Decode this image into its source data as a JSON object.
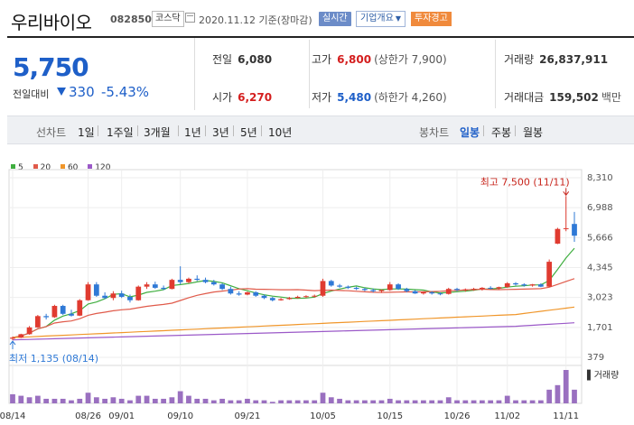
{
  "header": {
    "stock_name": "우리바이오",
    "stock_code": "082850",
    "market": "코스닥",
    "date_text": "2020.11.12 기준(장마감)",
    "realtime_label": "실시간",
    "company_info_label": "기업개요",
    "warning_label": "투자경고"
  },
  "price": {
    "current": "5,750",
    "change_label": "전일대비",
    "change_value": "330",
    "change_pct": "-5.43%"
  },
  "stats": {
    "prev_close_label": "전일",
    "prev_close": "6,080",
    "high_label": "고가",
    "high": "6,800",
    "upper_limit": "(상한가 7,900)",
    "volume_label": "거래량",
    "volume": "26,837,911",
    "open_label": "시가",
    "open": "6,270",
    "low_label": "저가",
    "low": "5,480",
    "lower_limit": "(하한가 4,260)",
    "amount_label": "거래대금",
    "amount": "159,502",
    "amount_unit": "백만"
  },
  "period_bar": {
    "line_chart_label": "선차트",
    "line_periods": [
      "1일",
      "1주일",
      "3개월",
      "1년",
      "3년",
      "5년",
      "10년"
    ],
    "candle_chart_label": "봉차트",
    "candle_periods": [
      "일봉",
      "주봉",
      "월봉"
    ],
    "active_candle": "일봉"
  },
  "chart_data": {
    "type": "candlestick",
    "legend": [
      {
        "name": "5",
        "color": "#3fae3f"
      },
      {
        "name": "20",
        "color": "#e05a4a"
      },
      {
        "name": "60",
        "color": "#f0962a"
      },
      {
        "name": "120",
        "color": "#9b59c8"
      }
    ],
    "y_ticks": [
      8310,
      6988,
      5666,
      4345,
      3023,
      1701,
      379
    ],
    "ylim": [
      379,
      8310
    ],
    "x_ticks": [
      "08/14",
      "08/26",
      "09/01",
      "09/10",
      "09/21",
      "10/05",
      "10/15",
      "10/26",
      "11/02",
      "11/11"
    ],
    "x_tick_index": [
      0,
      9,
      13,
      20,
      28,
      37,
      45,
      53,
      59,
      66
    ],
    "max_label": "최고 7,500 (11/11)",
    "min_label": "최저 1,135 (08/14)",
    "volume_label": "거래량",
    "candles": [
      {
        "o": 1200,
        "h": 1300,
        "l": 1135,
        "c": 1250
      },
      {
        "o": 1250,
        "h": 1420,
        "l": 1230,
        "c": 1400
      },
      {
        "o": 1400,
        "h": 1760,
        "l": 1380,
        "c": 1700
      },
      {
        "o": 1700,
        "h": 2250,
        "l": 1680,
        "c": 2200
      },
      {
        "o": 2200,
        "h": 2300,
        "l": 2050,
        "c": 2150
      },
      {
        "o": 2150,
        "h": 2700,
        "l": 2120,
        "c": 2650
      },
      {
        "o": 2650,
        "h": 2700,
        "l": 2250,
        "c": 2300
      },
      {
        "o": 2300,
        "h": 2480,
        "l": 2180,
        "c": 2220
      },
      {
        "o": 2220,
        "h": 2950,
        "l": 2200,
        "c": 2900
      },
      {
        "o": 2900,
        "h": 3700,
        "l": 2880,
        "c": 3600
      },
      {
        "o": 3600,
        "h": 3700,
        "l": 3050,
        "c": 3100
      },
      {
        "o": 3100,
        "h": 3250,
        "l": 2950,
        "c": 3000
      },
      {
        "o": 3000,
        "h": 3300,
        "l": 2900,
        "c": 3200
      },
      {
        "o": 3200,
        "h": 3320,
        "l": 3000,
        "c": 3050
      },
      {
        "o": 3050,
        "h": 3150,
        "l": 2800,
        "c": 2900
      },
      {
        "o": 2900,
        "h": 3550,
        "l": 2880,
        "c": 3500
      },
      {
        "o": 3500,
        "h": 3700,
        "l": 3400,
        "c": 3600
      },
      {
        "o": 3600,
        "h": 3720,
        "l": 3400,
        "c": 3450
      },
      {
        "o": 3450,
        "h": 3550,
        "l": 3350,
        "c": 3400
      },
      {
        "o": 3400,
        "h": 3850,
        "l": 3380,
        "c": 3800
      },
      {
        "o": 3800,
        "h": 4400,
        "l": 3600,
        "c": 3700
      },
      {
        "o": 3700,
        "h": 3900,
        "l": 3650,
        "c": 3850
      },
      {
        "o": 3850,
        "h": 4000,
        "l": 3750,
        "c": 3800
      },
      {
        "o": 3800,
        "h": 3900,
        "l": 3650,
        "c": 3700
      },
      {
        "o": 3700,
        "h": 3800,
        "l": 3550,
        "c": 3600
      },
      {
        "o": 3600,
        "h": 3650,
        "l": 3350,
        "c": 3400
      },
      {
        "o": 3400,
        "h": 3500,
        "l": 3150,
        "c": 3200
      },
      {
        "o": 3200,
        "h": 3300,
        "l": 3100,
        "c": 3150
      },
      {
        "o": 3150,
        "h": 3280,
        "l": 3120,
        "c": 3250
      },
      {
        "o": 3250,
        "h": 3300,
        "l": 3050,
        "c": 3100
      },
      {
        "o": 3100,
        "h": 3150,
        "l": 2950,
        "c": 3000
      },
      {
        "o": 3000,
        "h": 3050,
        "l": 2850,
        "c": 2900
      },
      {
        "o": 2900,
        "h": 3000,
        "l": 2880,
        "c": 2950
      },
      {
        "o": 2950,
        "h": 3050,
        "l": 2920,
        "c": 3000
      },
      {
        "o": 3000,
        "h": 3100,
        "l": 2980,
        "c": 3050
      },
      {
        "o": 3050,
        "h": 3120,
        "l": 3000,
        "c": 3080
      },
      {
        "o": 3080,
        "h": 3150,
        "l": 3020,
        "c": 3100
      },
      {
        "o": 3100,
        "h": 3850,
        "l": 3050,
        "c": 3750
      },
      {
        "o": 3750,
        "h": 3800,
        "l": 3500,
        "c": 3550
      },
      {
        "o": 3550,
        "h": 3620,
        "l": 3450,
        "c": 3500
      },
      {
        "o": 3500,
        "h": 3550,
        "l": 3400,
        "c": 3450
      },
      {
        "o": 3450,
        "h": 3500,
        "l": 3350,
        "c": 3400
      },
      {
        "o": 3400,
        "h": 3450,
        "l": 3300,
        "c": 3350
      },
      {
        "o": 3350,
        "h": 3420,
        "l": 3250,
        "c": 3300
      },
      {
        "o": 3300,
        "h": 3380,
        "l": 3230,
        "c": 3350
      },
      {
        "o": 3350,
        "h": 3700,
        "l": 3320,
        "c": 3600
      },
      {
        "o": 3600,
        "h": 3650,
        "l": 3350,
        "c": 3400
      },
      {
        "o": 3400,
        "h": 3450,
        "l": 3250,
        "c": 3300
      },
      {
        "o": 3300,
        "h": 3350,
        "l": 3180,
        "c": 3200
      },
      {
        "o": 3200,
        "h": 3280,
        "l": 3150,
        "c": 3250
      },
      {
        "o": 3250,
        "h": 3300,
        "l": 3150,
        "c": 3200
      },
      {
        "o": 3200,
        "h": 3250,
        "l": 3120,
        "c": 3180
      },
      {
        "o": 3180,
        "h": 3450,
        "l": 3150,
        "c": 3400
      },
      {
        "o": 3400,
        "h": 3450,
        "l": 3300,
        "c": 3350
      },
      {
        "o": 3350,
        "h": 3420,
        "l": 3280,
        "c": 3380
      },
      {
        "o": 3380,
        "h": 3450,
        "l": 3320,
        "c": 3400
      },
      {
        "o": 3400,
        "h": 3480,
        "l": 3330,
        "c": 3450
      },
      {
        "o": 3450,
        "h": 3520,
        "l": 3380,
        "c": 3420
      },
      {
        "o": 3420,
        "h": 3500,
        "l": 3380,
        "c": 3480
      },
      {
        "o": 3480,
        "h": 3700,
        "l": 3450,
        "c": 3650
      },
      {
        "o": 3650,
        "h": 3700,
        "l": 3550,
        "c": 3600
      },
      {
        "o": 3600,
        "h": 3650,
        "l": 3500,
        "c": 3550
      },
      {
        "o": 3550,
        "h": 3620,
        "l": 3500,
        "c": 3600
      },
      {
        "o": 3600,
        "h": 3650,
        "l": 3480,
        "c": 3500
      },
      {
        "o": 3500,
        "h": 4700,
        "l": 3480,
        "c": 4600
      },
      {
        "o": 5400,
        "h": 6100,
        "l": 5380,
        "c": 6050
      },
      {
        "o": 6050,
        "h": 7500,
        "l": 5950,
        "c": 6080
      },
      {
        "o": 6270,
        "h": 6800,
        "l": 5480,
        "c": 5750
      }
    ],
    "volume": [
      6,
      5,
      4,
      5,
      3,
      3,
      3,
      2,
      3,
      7,
      4,
      3,
      4,
      3,
      2,
      5,
      5,
      3,
      3,
      4,
      8,
      5,
      3,
      3,
      2,
      3,
      2,
      2,
      3,
      2,
      2,
      1,
      2,
      2,
      2,
      2,
      2,
      7,
      4,
      3,
      2,
      2,
      2,
      2,
      2,
      3,
      2,
      2,
      2,
      2,
      2,
      2,
      4,
      2,
      2,
      2,
      2,
      2,
      2,
      5,
      2,
      2,
      2,
      2,
      9,
      12,
      22,
      9
    ]
  }
}
